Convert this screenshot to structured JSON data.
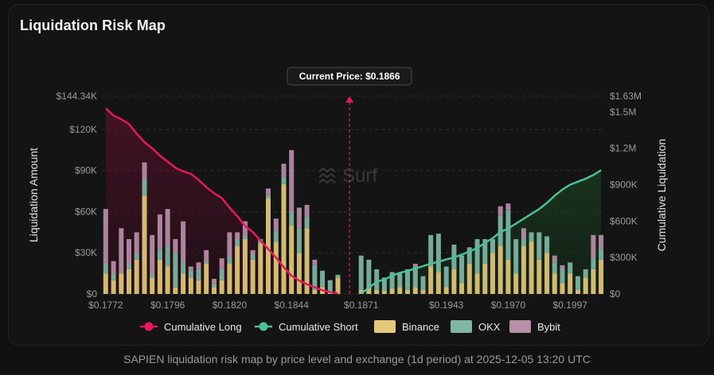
{
  "card": {
    "title": "Liquidation Risk Map"
  },
  "caption": "SAPIEN liquidation risk map by price level and exchange (1d period) at 2025-12-05 13:20 UTC",
  "watermark": "Surf",
  "chart_data": {
    "type": "bar",
    "title": "Liquidation Risk Map",
    "ylabel": "Liquidation Amount",
    "y2label": "Cumulative Liquidation",
    "ylim": [
      0,
      144340
    ],
    "y2lim": [
      0,
      1630000
    ],
    "y_ticks": [
      {
        "value": 0,
        "label": "$0"
      },
      {
        "value": 30000,
        "label": "$30K"
      },
      {
        "value": 60000,
        "label": "$60K"
      },
      {
        "value": 90000,
        "label": "$90K"
      },
      {
        "value": 120000,
        "label": "$120K"
      },
      {
        "value": 144340,
        "label": "$144.34K"
      }
    ],
    "y2_ticks": [
      {
        "value": 0,
        "label": "$0"
      },
      {
        "value": 300000,
        "label": "$300K"
      },
      {
        "value": 600000,
        "label": "$600K"
      },
      {
        "value": 900000,
        "label": "$900K"
      },
      {
        "value": 1200000,
        "label": "$1.2M"
      },
      {
        "value": 1500000,
        "label": "$1.5M"
      },
      {
        "value": 1630000,
        "label": "$1.63M"
      }
    ],
    "x_ticks": [
      {
        "index": 0,
        "label": "$0.1772"
      },
      {
        "index": 8,
        "label": "$0.1796"
      },
      {
        "index": 16,
        "label": "$0.1820"
      },
      {
        "index": 24,
        "label": "$0.1844"
      },
      {
        "index": 33,
        "label": "$0.1871"
      },
      {
        "index": 44,
        "label": "$0.1943"
      },
      {
        "index": 52,
        "label": "$0.1970"
      },
      {
        "index": 60,
        "label": "$0.1997"
      }
    ],
    "current_price": {
      "label": "Current Price: $0.1866",
      "position_index": 31.5
    },
    "series": [
      {
        "name": "Binance",
        "color": "#e3c97a",
        "values": [
          15000,
          10000,
          15000,
          18000,
          25000,
          72000,
          12000,
          25000,
          20000,
          5000,
          15000,
          12000,
          10000,
          22000,
          5000,
          10000,
          22000,
          35000,
          40000,
          25000,
          37000,
          70000,
          38000,
          80000,
          50000,
          30000,
          48000,
          3000,
          5000,
          2000,
          12000,
          0,
          0,
          3000,
          5000,
          3000,
          2000,
          4000,
          5000,
          3000,
          5000,
          3000,
          20000,
          16000,
          5000,
          18000,
          8000,
          22000,
          15000,
          22000,
          30000,
          35000,
          25000,
          15000,
          35000,
          38000,
          25000,
          30000,
          15000,
          8000,
          15000,
          3000,
          12000,
          18000,
          25000
        ]
      },
      {
        "name": "OKX",
        "color": "#7fb7a5",
        "values": [
          7000,
          5000,
          0,
          4000,
          4000,
          12000,
          3000,
          8000,
          15000,
          25000,
          8000,
          5000,
          8000,
          2000,
          3000,
          8000,
          5000,
          5000,
          3000,
          4000,
          3000,
          2000,
          8000,
          5000,
          10000,
          18000,
          8000,
          18000,
          12000,
          8000,
          2000,
          0,
          0,
          25000,
          20000,
          15000,
          10000,
          12000,
          10000,
          15000,
          15000,
          10000,
          23000,
          28000,
          15000,
          18000,
          20000,
          12000,
          25000,
          18000,
          10000,
          22000,
          36000,
          25000,
          5000,
          7000,
          20000,
          12000,
          8000,
          10000,
          8000,
          10000,
          6000,
          8000,
          8000
        ]
      },
      {
        "name": "Bybit",
        "color": "#b98ea8",
        "values": [
          40000,
          9000,
          33000,
          18000,
          16000,
          12000,
          28000,
          25000,
          27000,
          10000,
          30000,
          3000,
          5000,
          8000,
          3000,
          8000,
          18000,
          5000,
          10000,
          3000,
          0,
          5000,
          9000,
          10000,
          45000,
          15000,
          9000,
          4000,
          0,
          0,
          0,
          0,
          0,
          0,
          0,
          0,
          0,
          0,
          0,
          0,
          2000,
          0,
          0,
          0,
          0,
          0,
          0,
          0,
          0,
          0,
          0,
          7000,
          5000,
          0,
          8000,
          0,
          0,
          0,
          5000,
          3000,
          0,
          0,
          0,
          17000,
          10000
        ]
      },
      {
        "name": "Cumulative Long",
        "color": "#e8185c",
        "axis": "right",
        "values": [
          1530000,
          1470000,
          1440000,
          1400000,
          1320000,
          1250000,
          1200000,
          1140000,
          1090000,
          1040000,
          1010000,
          990000,
          940000,
          880000,
          830000,
          790000,
          710000,
          640000,
          560000,
          510000,
          440000,
          370000,
          300000,
          220000,
          150000,
          110000,
          80000,
          55000,
          30000,
          15000,
          5000
        ]
      },
      {
        "name": "Cumulative Short",
        "color": "#4dbf9a",
        "axis": "right",
        "values": [
          5000,
          50000,
          100000,
          120000,
          150000,
          175000,
          190000,
          210000,
          230000,
          250000,
          265000,
          285000,
          300000,
          325000,
          350000,
          380000,
          420000,
          460000,
          510000,
          540000,
          580000,
          620000,
          660000,
          700000,
          750000,
          810000,
          860000,
          900000,
          925000,
          950000,
          980000,
          1020000
        ]
      }
    ],
    "cumulative_long_start_index": 0,
    "cumulative_short_start_index": 33,
    "legend": [
      "Cumulative Long",
      "Cumulative Short",
      "Binance",
      "OKX",
      "Bybit"
    ],
    "legend_position": "bottom-center"
  }
}
